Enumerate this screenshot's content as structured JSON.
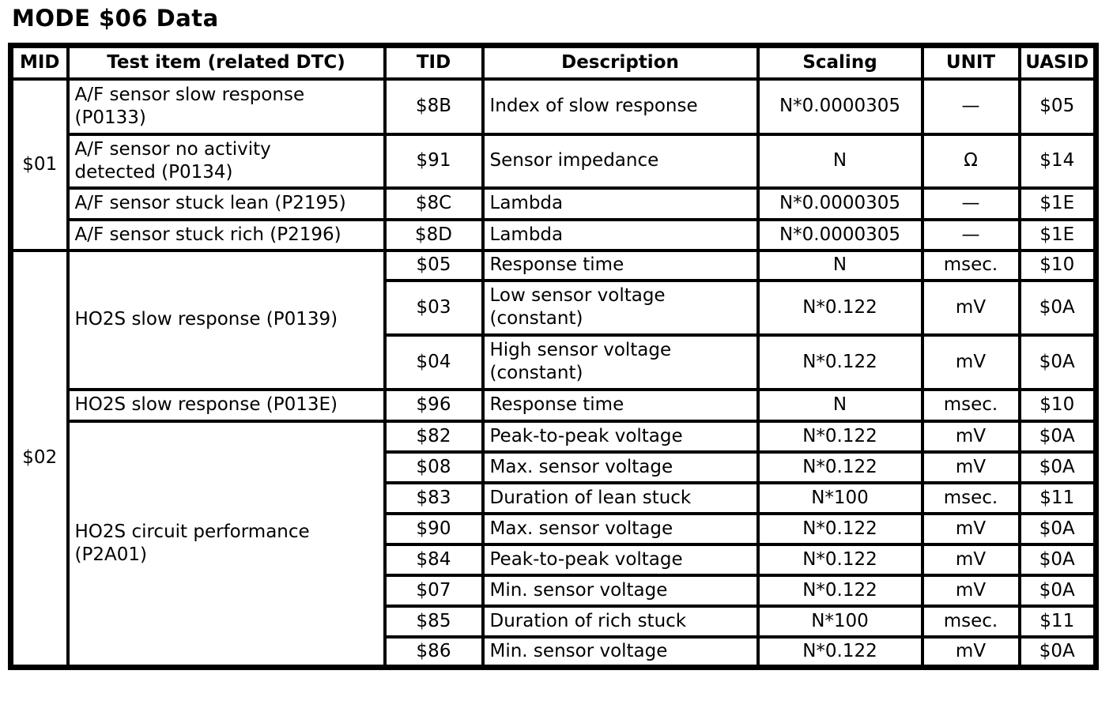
{
  "title": "MODE $06 Data",
  "colors": {
    "text": "#000000",
    "background": "#ffffff",
    "border": "#000000"
  },
  "table": {
    "headers": {
      "mid": "MID",
      "test_item": "Test item (related DTC)",
      "tid": "TID",
      "description": "Description",
      "scaling": "Scaling",
      "unit": "UNIT",
      "uasid": "UASID"
    },
    "groups": [
      {
        "mid": "$01",
        "items": [
          {
            "test_item": "A/F sensor slow response\n(P0133)",
            "rows": [
              {
                "tid": "$8B",
                "description": "Index of slow response",
                "scaling": "N*0.0000305",
                "unit": "—",
                "uasid": "$05"
              }
            ]
          },
          {
            "test_item": "A/F sensor no activity\ndetected (P0134)",
            "rows": [
              {
                "tid": "$91",
                "description": "Sensor impedance",
                "scaling": "N",
                "unit": "Ω",
                "uasid": "$14"
              }
            ]
          },
          {
            "test_item": "A/F sensor stuck lean (P2195)",
            "rows": [
              {
                "tid": "$8C",
                "description": "Lambda",
                "scaling": "N*0.0000305",
                "unit": "—",
                "uasid": "$1E"
              }
            ]
          },
          {
            "test_item": "A/F sensor stuck rich (P2196)",
            "rows": [
              {
                "tid": "$8D",
                "description": "Lambda",
                "scaling": "N*0.0000305",
                "unit": "—",
                "uasid": "$1E"
              }
            ]
          }
        ]
      },
      {
        "mid": "$02",
        "items": [
          {
            "test_item": "HO2S slow response (P0139)",
            "rows": [
              {
                "tid": "$05",
                "description": "Response time",
                "scaling": "N",
                "unit": "msec.",
                "uasid": "$10"
              },
              {
                "tid": "$03",
                "description": "Low sensor voltage\n(constant)",
                "scaling": "N*0.122",
                "unit": "mV",
                "uasid": "$0A"
              },
              {
                "tid": "$04",
                "description": "High sensor voltage\n(constant)",
                "scaling": "N*0.122",
                "unit": "mV",
                "uasid": "$0A"
              }
            ]
          },
          {
            "test_item": "HO2S slow response (P013E)",
            "rows": [
              {
                "tid": "$96",
                "description": "Response time",
                "scaling": "N",
                "unit": "msec.",
                "uasid": "$10"
              }
            ]
          },
          {
            "test_item": "HO2S circuit performance\n(P2A01)",
            "rows": [
              {
                "tid": "$82",
                "description": "Peak-to-peak voltage",
                "scaling": "N*0.122",
                "unit": "mV",
                "uasid": "$0A"
              },
              {
                "tid": "$08",
                "description": "Max. sensor voltage",
                "scaling": "N*0.122",
                "unit": "mV",
                "uasid": "$0A"
              },
              {
                "tid": "$83",
                "description": "Duration of lean stuck",
                "scaling": "N*100",
                "unit": "msec.",
                "uasid": "$11"
              },
              {
                "tid": "$90",
                "description": "Max. sensor voltage",
                "scaling": "N*0.122",
                "unit": "mV",
                "uasid": "$0A"
              },
              {
                "tid": "$84",
                "description": "Peak-to-peak voltage",
                "scaling": "N*0.122",
                "unit": "mV",
                "uasid": "$0A"
              },
              {
                "tid": "$07",
                "description": "Min. sensor voltage",
                "scaling": "N*0.122",
                "unit": "mV",
                "uasid": "$0A"
              },
              {
                "tid": "$85",
                "description": "Duration of rich stuck",
                "scaling": "N*100",
                "unit": "msec.",
                "uasid": "$11"
              },
              {
                "tid": "$86",
                "description": "Min. sensor voltage",
                "scaling": "N*0.122",
                "unit": "mV",
                "uasid": "$0A"
              }
            ]
          }
        ]
      }
    ]
  }
}
